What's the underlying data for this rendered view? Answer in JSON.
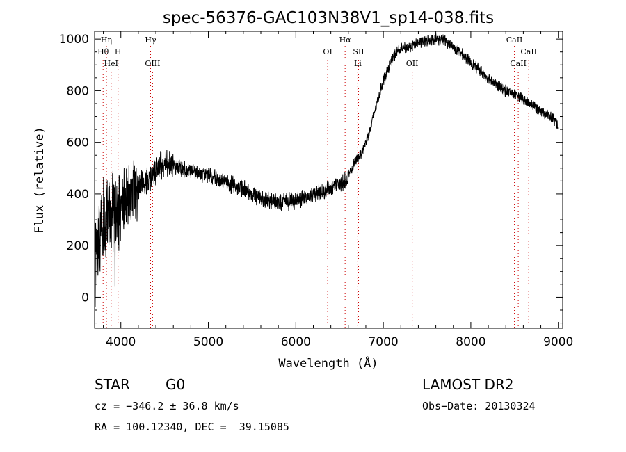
{
  "chart_data": {
    "type": "line",
    "title": "spec-56376-GAC103N38V1_sp14-038.fits",
    "xlabel": "Wavelength (Å)",
    "ylabel": "Flux (relative)",
    "xlim": [
      3700,
      9050
    ],
    "ylim": [
      -120,
      1030
    ],
    "xticks": [
      4000,
      5000,
      6000,
      7000,
      8000,
      9000
    ],
    "xtick_labels": [
      "4000",
      "5000",
      "6000",
      "7000",
      "8000",
      "9000"
    ],
    "yticks": [
      0,
      200,
      400,
      600,
      800,
      1000
    ],
    "ytick_labels": [
      "0",
      "200",
      "400",
      "600",
      "800",
      "1000"
    ],
    "grid": false,
    "series": [
      {
        "x": [
          3700,
          3750,
          3800,
          3850,
          3900,
          3950,
          4000,
          4050,
          4100,
          4150,
          4200,
          4250,
          4300,
          4350,
          4400,
          4450,
          4500,
          4600,
          4700,
          4800,
          4900,
          5000,
          5100,
          5200,
          5300,
          5400,
          5500,
          5600,
          5700,
          5800,
          5900,
          6000,
          6100,
          6200,
          6300,
          6400,
          6500,
          6560,
          6600,
          6650,
          6700,
          6750,
          6800,
          6850,
          6900,
          6950,
          7000,
          7050,
          7100,
          7150,
          7200,
          7300,
          7400,
          7500,
          7600,
          7700,
          7800,
          7900,
          8000,
          8100,
          8200,
          8300,
          8400,
          8500,
          8600,
          8700,
          8800,
          8900,
          8950,
          9000
        ],
        "y": [
          150,
          220,
          280,
          300,
          330,
          350,
          360,
          380,
          400,
          410,
          430,
          440,
          450,
          460,
          490,
          510,
          520,
          510,
          500,
          490,
          480,
          470,
          460,
          445,
          430,
          420,
          400,
          385,
          375,
          370,
          370,
          375,
          385,
          395,
          410,
          420,
          440,
          450,
          470,
          505,
          535,
          560,
          600,
          650,
          720,
          780,
          840,
          880,
          920,
          950,
          960,
          970,
          985,
          995,
          1000,
          995,
          970,
          940,
          910,
          880,
          850,
          820,
          800,
          785,
          765,
          745,
          725,
          700,
          690,
          660
        ],
        "noise": "high",
        "color": "#000000"
      }
    ],
    "lines_color": "#cc0000",
    "spectral_lines": [
      {
        "label": "Hη",
        "wavelength": 3835,
        "row": 1
      },
      {
        "label": "Hθ",
        "wavelength": 3797,
        "row": 2
      },
      {
        "label": "H",
        "wavelength": 3968,
        "row": 2
      },
      {
        "label": "HeI",
        "wavelength": 3889,
        "row": 3
      },
      {
        "label": "Hγ",
        "wavelength": 4340,
        "row": 1
      },
      {
        "label": "OIII",
        "wavelength": 4363,
        "row": 3
      },
      {
        "label": "OI",
        "wavelength": 6364,
        "row": 2
      },
      {
        "label": "Hα",
        "wavelength": 6563,
        "row": 1
      },
      {
        "label": "SII",
        "wavelength": 6717,
        "row": 2
      },
      {
        "label": "Li",
        "wavelength": 6708,
        "row": 3
      },
      {
        "label": "OII",
        "wavelength": 7330,
        "row": 3
      },
      {
        "label": "CaII",
        "wavelength": 8498,
        "row": 1
      },
      {
        "label": "CaII",
        "wavelength": 8662,
        "row": 2
      },
      {
        "label": "CaII",
        "wavelength": 8542,
        "row": 3
      }
    ]
  },
  "info": {
    "object_class": "STAR",
    "subclass": "G0",
    "survey": "LAMOST DR2",
    "redshift": "cz = −346.2 ± 36.8 km/s",
    "obs_date": "Obs−Date: 20130324",
    "coords": "RA = 100.12340, DEC =  39.15085"
  }
}
